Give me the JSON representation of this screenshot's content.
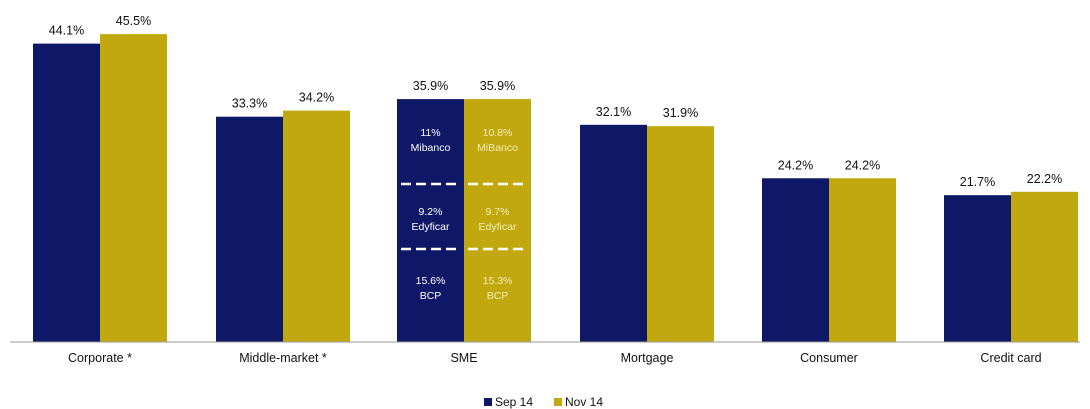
{
  "colors": {
    "series_sep": "#0E1866",
    "series_nov": "#C2A80F",
    "axis": "#9a9a9a",
    "seg_text_sep": "#ffffff",
    "seg_text_nov": "#F3EBB8",
    "divider": "#ffffff"
  },
  "chart_data": {
    "type": "bar",
    "categories": [
      "Corporate *",
      "Middle-market *",
      "SME",
      "Mortgage",
      "Consumer",
      "Credit card"
    ],
    "series": [
      {
        "name": "Sep 14",
        "values": [
          44.1,
          33.3,
          35.9,
          32.1,
          24.2,
          21.7
        ]
      },
      {
        "name": "Nov 14",
        "values": [
          45.5,
          34.2,
          35.9,
          31.9,
          24.2,
          22.2
        ]
      }
    ],
    "value_labels": {
      "Sep 14": [
        "44.1%",
        "33.3%",
        "35.9%",
        "32.1%",
        "24.2%",
        "21.7%"
      ],
      "Nov 14": [
        "45.5%",
        "34.2%",
        "35.9%",
        "31.9%",
        "24.2%",
        "22.2%"
      ]
    },
    "sme_breakdown": {
      "Sep 14": [
        {
          "value": "11%",
          "entity": "Mibanco"
        },
        {
          "value": "9.2%",
          "entity": "Edyficar"
        },
        {
          "value": "15.6%",
          "entity": "BCP"
        }
      ],
      "Nov 14": [
        {
          "value": "10.8%",
          "entity": "MiBanco"
        },
        {
          "value": "9.7%",
          "entity": "Edyficar"
        },
        {
          "value": "15.3%",
          "entity": "BCP"
        }
      ]
    },
    "ylim": [
      0,
      50
    ],
    "grid": false,
    "legend_position": "bottom-center"
  }
}
